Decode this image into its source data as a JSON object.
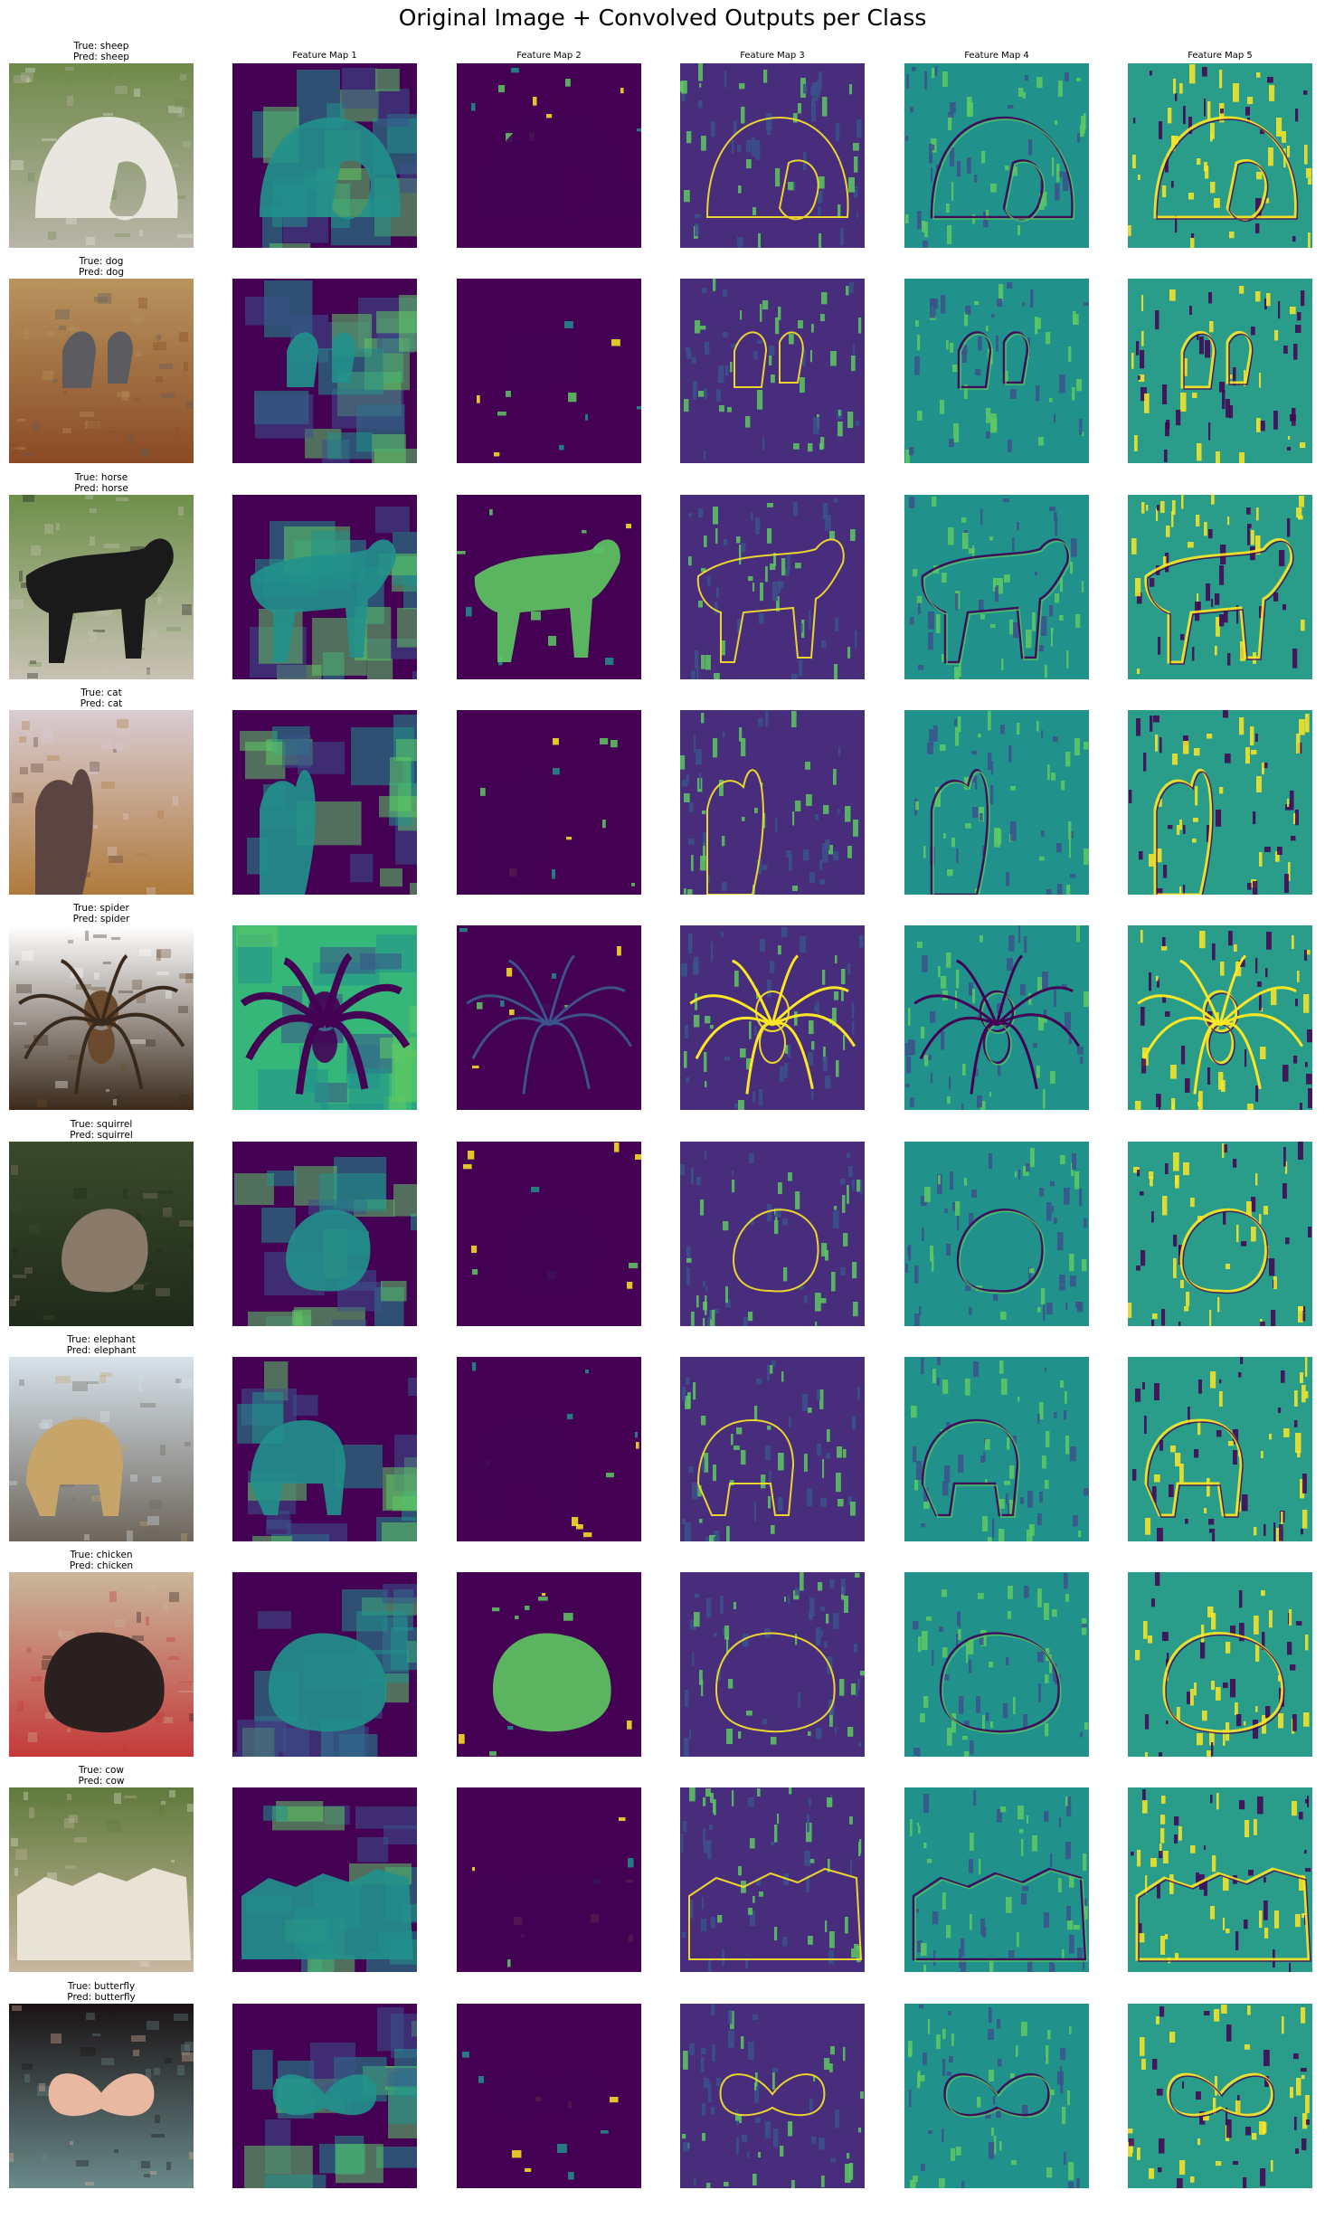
{
  "figure": {
    "title": "Original Image + Convolved Outputs per Class"
  },
  "column_titles": [
    "Feature Map 1",
    "Feature Map 2",
    "Feature Map 3",
    "Feature Map 4",
    "Feature Map 5"
  ],
  "rows": [
    {
      "true_label": "True: sheep",
      "pred_label": "Pred: sheep",
      "subject": "sheep",
      "photo_colors": [
        "#6f8a4a",
        "#e8e6df",
        "#b9b5a8"
      ]
    },
    {
      "true_label": "True: dog",
      "pred_label": "Pred: dog",
      "subject": "dog",
      "photo_colors": [
        "#b8945e",
        "#5b5b60",
        "#8a4a25"
      ]
    },
    {
      "true_label": "True: horse",
      "pred_label": "Pred: horse",
      "subject": "horse",
      "photo_colors": [
        "#6e8f4a",
        "#1a1a1a",
        "#c8c2b4"
      ]
    },
    {
      "true_label": "True: cat",
      "pred_label": "Pred: cat",
      "subject": "cat",
      "photo_colors": [
        "#d9ccd3",
        "#5a4540",
        "#b07a3c"
      ]
    },
    {
      "true_label": "True: spider",
      "pred_label": "Pred: spider",
      "subject": "spider",
      "photo_colors": [
        "#ffffff",
        "#6b4a2e",
        "#3a2a1c"
      ]
    },
    {
      "true_label": "True: squirrel",
      "pred_label": "Pred: squirrel",
      "subject": "squirrel",
      "photo_colors": [
        "#3a4a2c",
        "#8a7a6a",
        "#1f2a1a"
      ]
    },
    {
      "true_label": "True: elephant",
      "pred_label": "Pred: elephant",
      "subject": "elephant",
      "photo_colors": [
        "#d7e2ea",
        "#c7a56a",
        "#6d665c"
      ]
    },
    {
      "true_label": "True: chicken",
      "pred_label": "Pred: chicken",
      "subject": "chicken",
      "photo_colors": [
        "#c9b79b",
        "#2a2020",
        "#c43a3a"
      ]
    },
    {
      "true_label": "True: cow",
      "pred_label": "Pred: cow",
      "subject": "cow",
      "photo_colors": [
        "#5f7a3c",
        "#e9e3d6",
        "#c9b7a0"
      ]
    },
    {
      "true_label": "True: butterfly",
      "pred_label": "Pred: butterfly",
      "subject": "butterfly",
      "photo_colors": [
        "#1a1214",
        "#e8b8a0",
        "#6a8a8a"
      ]
    }
  ],
  "colormap": "viridis",
  "colors": {
    "viridis_low": "#440154",
    "viridis_midlow": "#3b528b",
    "viridis_mid": "#21918c",
    "viridis_midhigh": "#5ec962",
    "viridis_high": "#fde725"
  }
}
